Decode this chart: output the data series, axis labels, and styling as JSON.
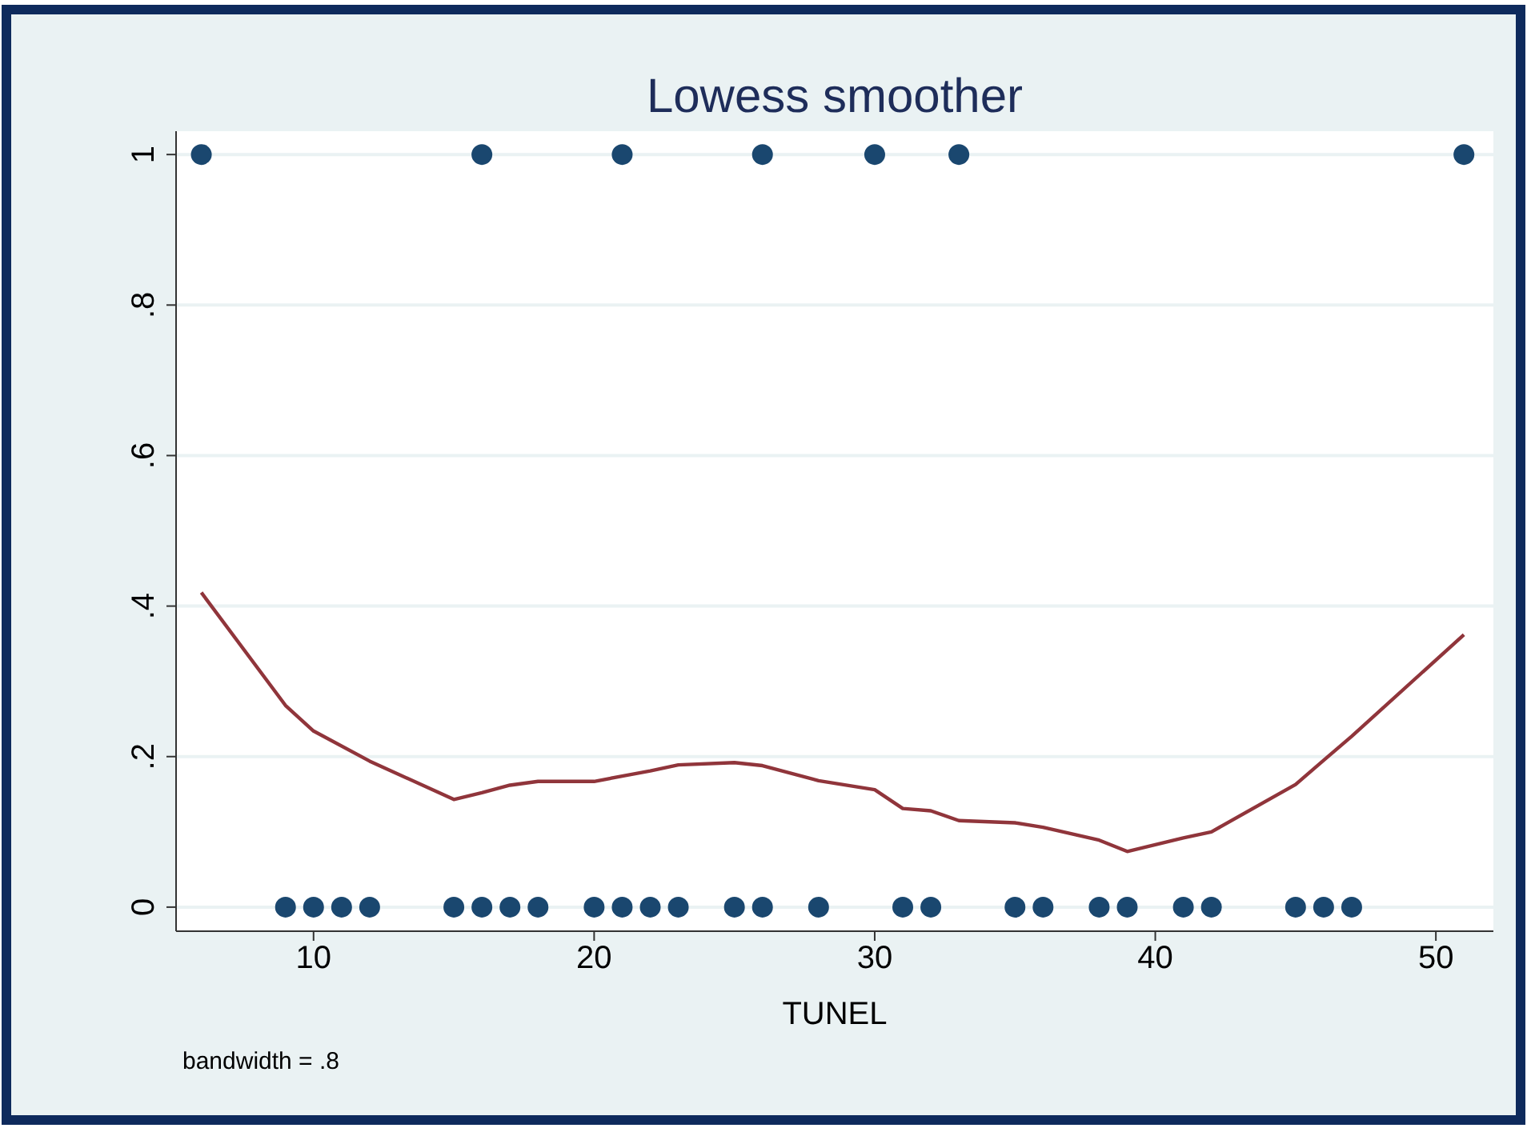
{
  "chart_data": {
    "type": "scatter",
    "title": "Lowess smoother",
    "xlabel": "TUNEL",
    "annotations": [
      "bandwidth = .8"
    ],
    "xlim": [
      5.1,
      52.05
    ],
    "xticks": [
      10,
      20,
      30,
      40,
      50
    ],
    "ylim": [
      -0.032,
      1.031
    ],
    "yticks": [
      {
        "value": 0,
        "label": "0"
      },
      {
        "value": 0.2,
        "label": ".2"
      },
      {
        "value": 0.4,
        "label": ".4"
      },
      {
        "value": 0.6,
        "label": ".6"
      },
      {
        "value": 0.8,
        "label": ".8"
      },
      {
        "value": 1,
        "label": "1"
      }
    ],
    "grid": "y",
    "series": [
      {
        "color": "#1a476f",
        "marker": "circle",
        "x": [
          6,
          16,
          21,
          26,
          30,
          33,
          51,
          9,
          10,
          11,
          12,
          15,
          16,
          17,
          18,
          20,
          21,
          22,
          23,
          25,
          26,
          28,
          31,
          32,
          35,
          36,
          38,
          39,
          41,
          42,
          45,
          46,
          47
        ],
        "values": [
          1,
          1,
          1,
          1,
          1,
          1,
          1,
          0,
          0,
          0,
          0,
          0,
          0,
          0,
          0,
          0,
          0,
          0,
          0,
          0,
          0,
          0,
          0,
          0,
          0,
          0,
          0,
          0,
          0,
          0,
          0,
          0,
          0
        ]
      },
      {
        "type": "line",
        "color": "#90353b",
        "line_style": "solid",
        "marker": "none",
        "x": [
          6,
          9,
          10,
          12,
          15,
          16,
          17,
          18,
          20,
          21,
          22,
          23,
          25,
          26,
          28,
          30,
          31,
          32,
          33,
          35,
          36,
          38,
          39,
          41,
          42,
          45,
          46,
          47,
          51
        ],
        "values": [
          0.418,
          0.268,
          0.234,
          0.194,
          0.143,
          0.152,
          0.162,
          0.167,
          0.167,
          0.174,
          0.181,
          0.189,
          0.192,
          0.188,
          0.168,
          0.156,
          0.131,
          0.128,
          0.115,
          0.112,
          0.106,
          0.089,
          0.074,
          0.092,
          0.1,
          0.163,
          0.195,
          0.227,
          0.362
        ]
      }
    ]
  }
}
